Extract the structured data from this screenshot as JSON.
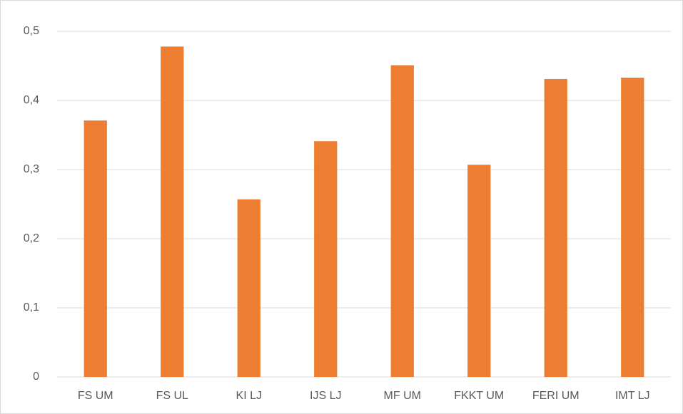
{
  "chart_data": {
    "type": "bar",
    "categories": [
      "FS UM",
      "FS UL",
      "KI LJ",
      "IJS LJ",
      "MF UM",
      "FKKT UM",
      "FERI UM",
      "IMT LJ"
    ],
    "values": [
      0.371,
      0.478,
      0.257,
      0.341,
      0.451,
      0.307,
      0.431,
      0.433
    ],
    "color": "#ed7d31",
    "ylim": [
      0,
      0.5
    ],
    "yticks": [
      0,
      {
        "value": 0.1,
        "label": "0,1"
      },
      {
        "value": 0.2,
        "label": "0,2"
      },
      {
        "value": 0.3,
        "label": "0,3"
      },
      {
        "value": 0.4,
        "label": "0,4"
      },
      {
        "value": 0.5,
        "label": "0,5"
      }
    ],
    "grid": true
  }
}
